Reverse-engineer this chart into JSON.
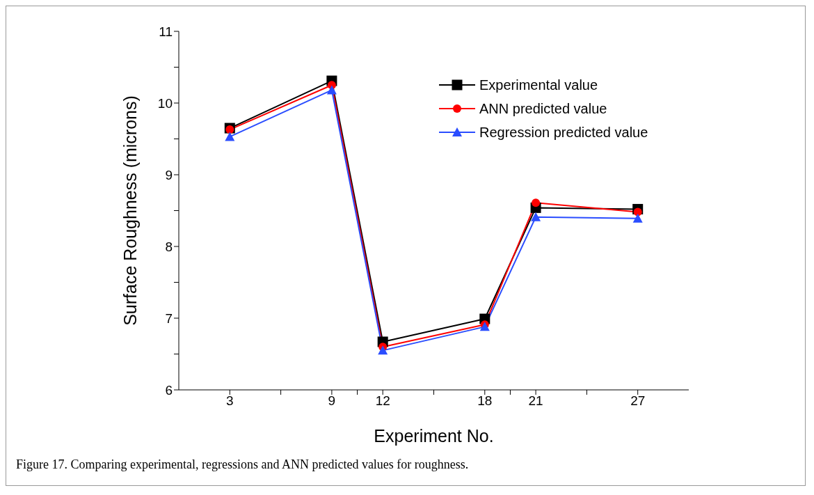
{
  "chart_data": {
    "type": "line",
    "xlabel": "Experiment No.",
    "ylabel": "Surface Roughness (microns)",
    "x": [
      3,
      9,
      12,
      18,
      21,
      27
    ],
    "series": [
      {
        "name": "Experimental value",
        "color": "#000000",
        "marker": "square",
        "values": [
          9.65,
          10.31,
          6.67,
          6.99,
          8.54,
          8.52
        ]
      },
      {
        "name": "ANN predicted value",
        "color": "#ff0000",
        "marker": "circle",
        "values": [
          9.63,
          10.25,
          6.6,
          6.91,
          8.61,
          8.48
        ]
      },
      {
        "name": "Regression predicted value",
        "color": "#2a4dff",
        "marker": "triangle",
        "values": [
          9.53,
          10.18,
          6.55,
          6.88,
          8.41,
          8.39
        ]
      }
    ],
    "xlim": [
      0,
      30
    ],
    "xticks": [
      3,
      {
        "value": 6,
        "label": null
      },
      9,
      {
        "value": 10.5,
        "label": null
      },
      12,
      {
        "value": 15,
        "label": null
      },
      18,
      {
        "value": 19.5,
        "label": null
      },
      21,
      {
        "value": 24,
        "label": null
      },
      27
    ],
    "ylim": [
      6,
      11
    ],
    "yticks": [
      6,
      {
        "value": 6.5,
        "label": null
      },
      7,
      {
        "value": 7.5,
        "label": null
      },
      8,
      {
        "value": 8.5,
        "label": null
      },
      9,
      {
        "value": 9.5,
        "label": null
      },
      10,
      {
        "value": 10.5,
        "label": null
      },
      11
    ],
    "grid": false,
    "legend": "top right",
    "line_style": "solid",
    "annotations": [
      "Figure 17. Comparing experimental, regressions and ANN predicted values for roughness."
    ]
  }
}
